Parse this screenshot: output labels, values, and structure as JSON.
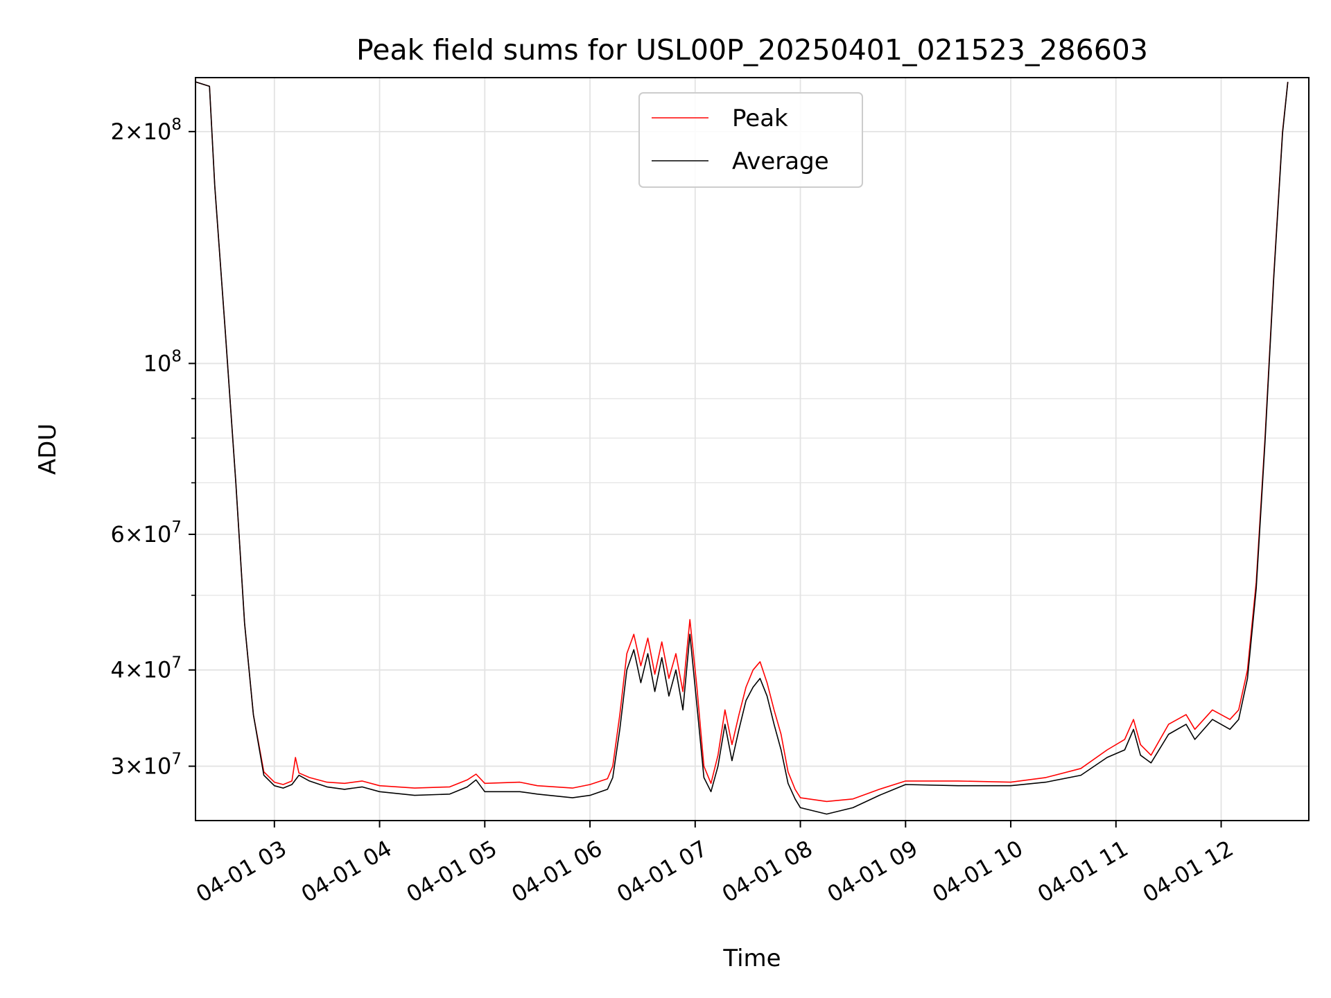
{
  "chart_data": {
    "type": "line",
    "title": "Peak field sums for USL00P_20250401_021523_286603",
    "xlabel": "Time",
    "ylabel": "ADU",
    "y_scale": "log",
    "grid": true,
    "legend_position": "upper center",
    "xlim": [
      "2025-04-01 02:15",
      "2025-04-01 12:50"
    ],
    "ylim": [
      25500000,
      235000000
    ],
    "x_ticks": [
      {
        "time": "2025-04-01 03:00",
        "label": "04-01 03"
      },
      {
        "time": "2025-04-01 04:00",
        "label": "04-01 04"
      },
      {
        "time": "2025-04-01 05:00",
        "label": "04-01 05"
      },
      {
        "time": "2025-04-01 06:00",
        "label": "04-01 06"
      },
      {
        "time": "2025-04-01 07:00",
        "label": "04-01 07"
      },
      {
        "time": "2025-04-01 08:00",
        "label": "04-01 08"
      },
      {
        "time": "2025-04-01 09:00",
        "label": "04-01 09"
      },
      {
        "time": "2025-04-01 10:00",
        "label": "04-01 10"
      },
      {
        "time": "2025-04-01 11:00",
        "label": "04-01 11"
      },
      {
        "time": "2025-04-01 12:00",
        "label": "04-01 12"
      }
    ],
    "y_ticks": [
      {
        "value": 30000000,
        "mantissa": "3",
        "exponent": "7"
      },
      {
        "value": 40000000,
        "mantissa": "4",
        "exponent": "7"
      },
      {
        "value": 60000000,
        "mantissa": "6",
        "exponent": "7"
      },
      {
        "value": 100000000,
        "mantissa": "",
        "exponent": "8"
      },
      {
        "value": 200000000,
        "mantissa": "2",
        "exponent": "8"
      }
    ],
    "y_minor_ticks": [
      50000000,
      70000000,
      80000000,
      90000000
    ],
    "series": [
      {
        "name": "Peak",
        "color": "#ff0000",
        "points": [
          [
            "2025-04-01 02:15",
            232000000
          ],
          [
            "2025-04-01 02:23",
            229000000
          ],
          [
            "2025-04-01 02:26",
            170000000
          ],
          [
            "2025-04-01 02:32",
            110000000
          ],
          [
            "2025-04-01 02:38",
            70000000
          ],
          [
            "2025-04-01 02:43",
            46000000
          ],
          [
            "2025-04-01 02:48",
            35000000
          ],
          [
            "2025-04-01 02:54",
            29500000
          ],
          [
            "2025-04-01 03:00",
            28600000
          ],
          [
            "2025-04-01 03:05",
            28400000
          ],
          [
            "2025-04-01 03:10",
            28700000
          ],
          [
            "2025-04-01 03:12",
            30800000
          ],
          [
            "2025-04-01 03:14",
            29400000
          ],
          [
            "2025-04-01 03:20",
            29000000
          ],
          [
            "2025-04-01 03:30",
            28600000
          ],
          [
            "2025-04-01 03:40",
            28500000
          ],
          [
            "2025-04-01 03:50",
            28700000
          ],
          [
            "2025-04-01 04:00",
            28300000
          ],
          [
            "2025-04-01 04:20",
            28100000
          ],
          [
            "2025-04-01 04:40",
            28200000
          ],
          [
            "2025-04-01 04:50",
            28800000
          ],
          [
            "2025-04-01 04:55",
            29300000
          ],
          [
            "2025-04-01 05:00",
            28500000
          ],
          [
            "2025-04-01 05:20",
            28600000
          ],
          [
            "2025-04-01 05:30",
            28300000
          ],
          [
            "2025-04-01 05:50",
            28100000
          ],
          [
            "2025-04-01 06:00",
            28400000
          ],
          [
            "2025-04-01 06:10",
            28900000
          ],
          [
            "2025-04-01 06:13",
            30000000
          ],
          [
            "2025-04-01 06:17",
            35000000
          ],
          [
            "2025-04-01 06:21",
            42000000
          ],
          [
            "2025-04-01 06:25",
            44500000
          ],
          [
            "2025-04-01 06:29",
            40500000
          ],
          [
            "2025-04-01 06:33",
            44000000
          ],
          [
            "2025-04-01 06:37",
            39500000
          ],
          [
            "2025-04-01 06:41",
            43500000
          ],
          [
            "2025-04-01 06:45",
            39000000
          ],
          [
            "2025-04-01 06:49",
            42000000
          ],
          [
            "2025-04-01 06:53",
            37500000
          ],
          [
            "2025-04-01 06:57",
            46500000
          ],
          [
            "2025-04-01 07:01",
            38000000
          ],
          [
            "2025-04-01 07:05",
            30000000
          ],
          [
            "2025-04-01 07:09",
            28500000
          ],
          [
            "2025-04-01 07:13",
            31000000
          ],
          [
            "2025-04-01 07:17",
            35500000
          ],
          [
            "2025-04-01 07:21",
            32000000
          ],
          [
            "2025-04-01 07:25",
            35000000
          ],
          [
            "2025-04-01 07:29",
            38000000
          ],
          [
            "2025-04-01 07:33",
            40000000
          ],
          [
            "2025-04-01 07:37",
            41000000
          ],
          [
            "2025-04-01 07:41",
            38500000
          ],
          [
            "2025-04-01 07:45",
            35500000
          ],
          [
            "2025-04-01 07:49",
            33000000
          ],
          [
            "2025-04-01 07:53",
            29500000
          ],
          [
            "2025-04-01 07:57",
            28000000
          ],
          [
            "2025-04-01 08:00",
            27300000
          ],
          [
            "2025-04-01 08:15",
            27000000
          ],
          [
            "2025-04-01 08:30",
            27200000
          ],
          [
            "2025-04-01 08:45",
            28000000
          ],
          [
            "2025-04-01 09:00",
            28700000
          ],
          [
            "2025-04-01 09:30",
            28700000
          ],
          [
            "2025-04-01 10:00",
            28600000
          ],
          [
            "2025-04-01 10:20",
            29000000
          ],
          [
            "2025-04-01 10:40",
            29800000
          ],
          [
            "2025-04-01 10:55",
            31500000
          ],
          [
            "2025-04-01 11:05",
            32500000
          ],
          [
            "2025-04-01 11:10",
            34500000
          ],
          [
            "2025-04-01 11:14",
            32000000
          ],
          [
            "2025-04-01 11:20",
            31000000
          ],
          [
            "2025-04-01 11:30",
            34000000
          ],
          [
            "2025-04-01 11:40",
            35000000
          ],
          [
            "2025-04-01 11:45",
            33500000
          ],
          [
            "2025-04-01 11:55",
            35500000
          ],
          [
            "2025-04-01 12:05",
            34500000
          ],
          [
            "2025-04-01 12:10",
            35500000
          ],
          [
            "2025-04-01 12:15",
            40000000
          ],
          [
            "2025-04-01 12:20",
            52000000
          ],
          [
            "2025-04-01 12:25",
            80000000
          ],
          [
            "2025-04-01 12:30",
            130000000
          ],
          [
            "2025-04-01 12:35",
            200000000
          ],
          [
            "2025-04-01 12:38",
            232000000
          ]
        ]
      },
      {
        "name": "Average",
        "color": "#000000",
        "points": [
          [
            "2025-04-01 02:15",
            232000000
          ],
          [
            "2025-04-01 02:23",
            229000000
          ],
          [
            "2025-04-01 02:26",
            170000000
          ],
          [
            "2025-04-01 02:32",
            110000000
          ],
          [
            "2025-04-01 02:38",
            70000000
          ],
          [
            "2025-04-01 02:43",
            46000000
          ],
          [
            "2025-04-01 02:48",
            35000000
          ],
          [
            "2025-04-01 02:54",
            29200000
          ],
          [
            "2025-04-01 03:00",
            28300000
          ],
          [
            "2025-04-01 03:05",
            28100000
          ],
          [
            "2025-04-01 03:10",
            28400000
          ],
          [
            "2025-04-01 03:14",
            29200000
          ],
          [
            "2025-04-01 03:20",
            28700000
          ],
          [
            "2025-04-01 03:30",
            28200000
          ],
          [
            "2025-04-01 03:40",
            28000000
          ],
          [
            "2025-04-01 03:50",
            28200000
          ],
          [
            "2025-04-01 04:00",
            27800000
          ],
          [
            "2025-04-01 04:20",
            27500000
          ],
          [
            "2025-04-01 04:40",
            27600000
          ],
          [
            "2025-04-01 04:50",
            28200000
          ],
          [
            "2025-04-01 04:55",
            28800000
          ],
          [
            "2025-04-01 05:00",
            27800000
          ],
          [
            "2025-04-01 05:20",
            27800000
          ],
          [
            "2025-04-01 05:30",
            27600000
          ],
          [
            "2025-04-01 05:50",
            27300000
          ],
          [
            "2025-04-01 06:00",
            27500000
          ],
          [
            "2025-04-01 06:10",
            28000000
          ],
          [
            "2025-04-01 06:13",
            29000000
          ],
          [
            "2025-04-01 06:17",
            33500000
          ],
          [
            "2025-04-01 06:21",
            40000000
          ],
          [
            "2025-04-01 06:25",
            42500000
          ],
          [
            "2025-04-01 06:29",
            38500000
          ],
          [
            "2025-04-01 06:33",
            42000000
          ],
          [
            "2025-04-01 06:37",
            37500000
          ],
          [
            "2025-04-01 06:41",
            41500000
          ],
          [
            "2025-04-01 06:45",
            37000000
          ],
          [
            "2025-04-01 06:49",
            40000000
          ],
          [
            "2025-04-01 06:53",
            35500000
          ],
          [
            "2025-04-01 06:57",
            44500000
          ],
          [
            "2025-04-01 07:01",
            36000000
          ],
          [
            "2025-04-01 07:05",
            29000000
          ],
          [
            "2025-04-01 07:09",
            27800000
          ],
          [
            "2025-04-01 07:13",
            30000000
          ],
          [
            "2025-04-01 07:17",
            34000000
          ],
          [
            "2025-04-01 07:21",
            30500000
          ],
          [
            "2025-04-01 07:25",
            33500000
          ],
          [
            "2025-04-01 07:29",
            36500000
          ],
          [
            "2025-04-01 07:33",
            38000000
          ],
          [
            "2025-04-01 07:37",
            39000000
          ],
          [
            "2025-04-01 07:41",
            37000000
          ],
          [
            "2025-04-01 07:45",
            34000000
          ],
          [
            "2025-04-01 07:49",
            31500000
          ],
          [
            "2025-04-01 07:53",
            28500000
          ],
          [
            "2025-04-01 07:57",
            27200000
          ],
          [
            "2025-04-01 08:00",
            26500000
          ],
          [
            "2025-04-01 08:15",
            26000000
          ],
          [
            "2025-04-01 08:30",
            26500000
          ],
          [
            "2025-04-01 08:45",
            27500000
          ],
          [
            "2025-04-01 09:00",
            28400000
          ],
          [
            "2025-04-01 09:30",
            28300000
          ],
          [
            "2025-04-01 10:00",
            28300000
          ],
          [
            "2025-04-01 10:20",
            28600000
          ],
          [
            "2025-04-01 10:40",
            29200000
          ],
          [
            "2025-04-01 10:55",
            30800000
          ],
          [
            "2025-04-01 11:05",
            31500000
          ],
          [
            "2025-04-01 11:10",
            33500000
          ],
          [
            "2025-04-01 11:14",
            31000000
          ],
          [
            "2025-04-01 11:20",
            30300000
          ],
          [
            "2025-04-01 11:30",
            33000000
          ],
          [
            "2025-04-01 11:40",
            34000000
          ],
          [
            "2025-04-01 11:45",
            32500000
          ],
          [
            "2025-04-01 11:55",
            34500000
          ],
          [
            "2025-04-01 12:05",
            33500000
          ],
          [
            "2025-04-01 12:10",
            34500000
          ],
          [
            "2025-04-01 12:15",
            39000000
          ],
          [
            "2025-04-01 12:20",
            51000000
          ],
          [
            "2025-04-01 12:25",
            79000000
          ],
          [
            "2025-04-01 12:30",
            129000000
          ],
          [
            "2025-04-01 12:35",
            199000000
          ],
          [
            "2025-04-01 12:38",
            232000000
          ]
        ]
      }
    ]
  }
}
